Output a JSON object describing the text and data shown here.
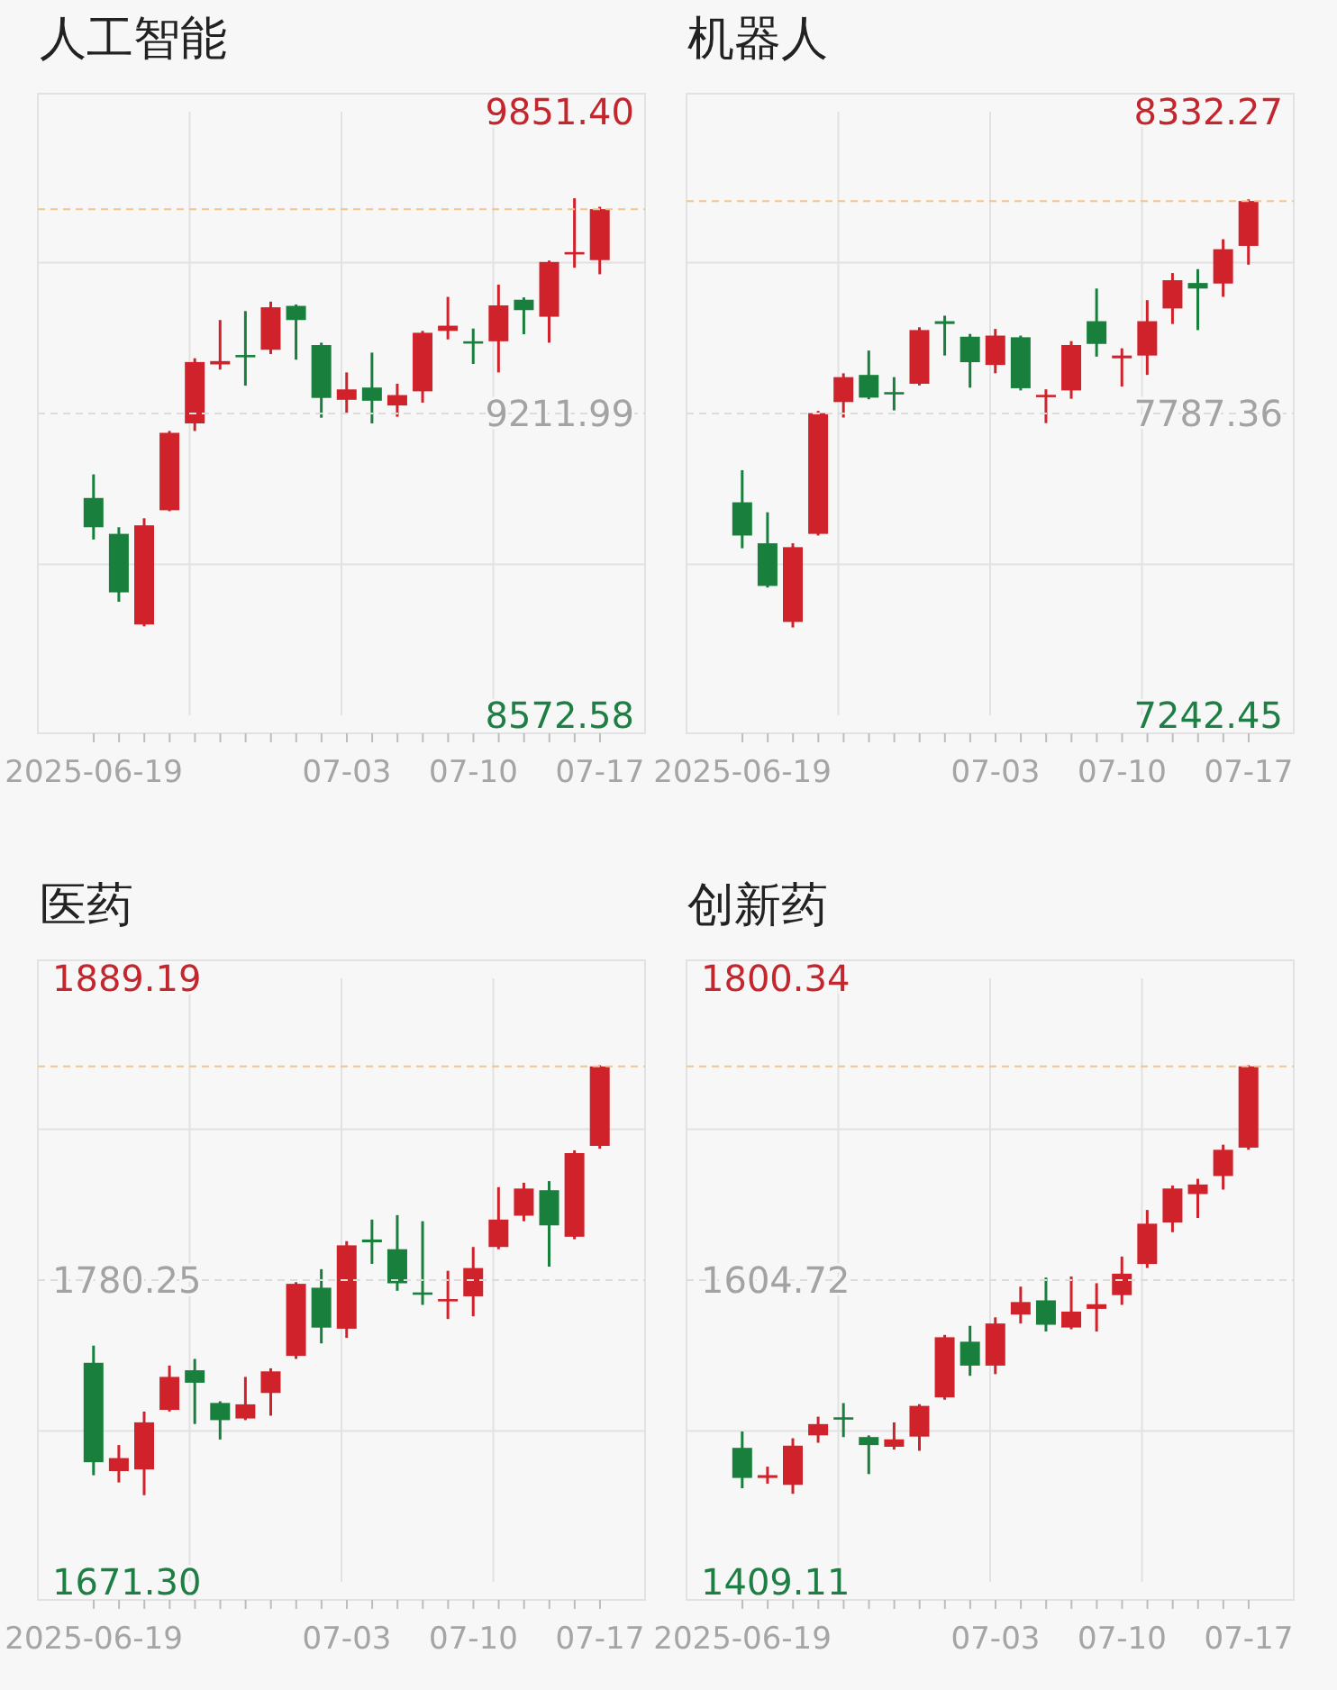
{
  "chart_data": [
    {
      "type": "candlestick",
      "title": "人工智能",
      "categories": [
        "2025-06-19",
        null,
        null,
        null,
        null,
        null,
        null,
        null,
        null,
        null,
        "07-03",
        null,
        null,
        null,
        null,
        "07-10",
        null,
        null,
        null,
        null,
        "07-17"
      ],
      "ohlc": [
        [
          9033,
          9083,
          8945,
          8971
        ],
        [
          8957,
          8971,
          8813,
          8833
        ],
        [
          8765,
          8990,
          8761,
          8975
        ],
        [
          9007,
          9175,
          9005,
          9171
        ],
        [
          9191,
          9329,
          9175,
          9321
        ],
        [
          9316,
          9410,
          9305,
          9323
        ],
        [
          9336,
          9429,
          9271,
          9332
        ],
        [
          9347,
          9449,
          9338,
          9437
        ],
        [
          9440,
          9443,
          9326,
          9410
        ],
        [
          9357,
          9362,
          9203,
          9245
        ],
        [
          9241,
          9299,
          9213,
          9263
        ],
        [
          9267,
          9341,
          9191,
          9239
        ],
        [
          9229,
          9275,
          9205,
          9251
        ],
        [
          9259,
          9387,
          9235,
          9383
        ],
        [
          9387,
          9459,
          9369,
          9398
        ],
        [
          9365,
          9392,
          9317,
          9362
        ],
        [
          9365,
          9485,
          9299,
          9441
        ],
        [
          9453,
          9458,
          9380,
          9431
        ],
        [
          9417,
          9536,
          9362,
          9533
        ],
        [
          9549,
          9668,
          9521,
          9554
        ],
        [
          9537,
          9650,
          9507,
          9645
        ]
      ],
      "colors": [
        "#18803c",
        "#18803c",
        "#d0222a",
        "#d0222a",
        "#d0222a",
        "#d0222a",
        "#18803c",
        "#d0222a",
        "#18803c",
        "#18803c",
        "#d0222a",
        "#18803c",
        "#d0222a",
        "#d0222a",
        "#d0222a",
        "#18803c",
        "#d0222a",
        "#18803c",
        "#d0222a",
        "#d0222a",
        "#d0222a"
      ],
      "ylim": [
        8572.58,
        9851.4
      ],
      "yticks": [
        8572.58,
        {
          "value": 8892.29,
          "label": null
        },
        9211.99,
        {
          "value": 9531.7,
          "label": null
        },
        {
          "value": 9851.4,
          "label": "9851.40"
        }
      ],
      "grid": true,
      "ref_lines": [
        {
          "axis": "y",
          "value": 9211.99,
          "color": "#dcdcdc",
          "line_style": "dashed"
        },
        {
          "axis": "y",
          "value": 9645,
          "color": "#f2c48e",
          "line_style": "dashed"
        }
      ]
    },
    {
      "type": "candlestick",
      "title": "机器人",
      "categories": [
        "2025-06-19",
        null,
        null,
        null,
        null,
        null,
        null,
        null,
        null,
        null,
        "07-03",
        null,
        null,
        null,
        null,
        "07-10",
        null,
        null,
        null,
        null,
        "07-17"
      ],
      "ohlc": [
        [
          7627,
          7685,
          7544,
          7567
        ],
        [
          7553,
          7609,
          7473,
          7476
        ],
        [
          7411,
          7553,
          7401,
          7546
        ],
        [
          7570,
          7792,
          7567,
          7788
        ],
        [
          7808,
          7860,
          7780,
          7853
        ],
        [
          7857,
          7901,
          7813,
          7816
        ],
        [
          7826,
          7853,
          7793,
          7823
        ],
        [
          7841,
          7943,
          7838,
          7938
        ],
        [
          7954,
          7964,
          7892,
          7949
        ],
        [
          7926,
          7931,
          7834,
          7880
        ],
        [
          7875,
          7940,
          7860,
          7928
        ],
        [
          7925,
          7928,
          7829,
          7833
        ],
        [
          7818,
          7831,
          7770,
          7821
        ],
        [
          7829,
          7918,
          7814,
          7911
        ],
        [
          7954,
          8013,
          7890,
          7913
        ],
        [
          7887,
          7905,
          7836,
          7892
        ],
        [
          7892,
          7992,
          7857,
          7954
        ],
        [
          7977,
          8041,
          7949,
          8028
        ],
        [
          8023,
          8048,
          7938,
          8013
        ],
        [
          8022,
          8102,
          7998,
          8084
        ],
        [
          8090,
          8174,
          8056,
          8171
        ]
      ],
      "colors": [
        "#18803c",
        "#18803c",
        "#d0222a",
        "#d0222a",
        "#d0222a",
        "#18803c",
        "#18803c",
        "#d0222a",
        "#18803c",
        "#18803c",
        "#d0222a",
        "#18803c",
        "#d0222a",
        "#d0222a",
        "#18803c",
        "#d0222a",
        "#d0222a",
        "#d0222a",
        "#18803c",
        "#d0222a",
        "#d0222a"
      ],
      "ylim": [
        7242.45,
        8332.27
      ],
      "yticks": [
        7242.45,
        {
          "value": 7514.91,
          "label": null
        },
        7787.36,
        {
          "value": 8059.82,
          "label": null
        },
        8332.27
      ],
      "grid": true,
      "ref_lines": [
        {
          "axis": "y",
          "value": 7787.36,
          "color": "#dcdcdc",
          "line_style": "dashed"
        },
        {
          "axis": "y",
          "value": 8171,
          "color": "#f2c48e",
          "line_style": "dashed"
        }
      ]
    },
    {
      "type": "candlestick",
      "title": "医药",
      "categories": [
        "2025-06-19",
        null,
        null,
        null,
        null,
        null,
        null,
        null,
        null,
        null,
        "07-03",
        null,
        null,
        null,
        null,
        "07-10",
        null,
        null,
        null,
        null,
        "07-17"
      ],
      "ohlc": [
        [
          1750.4,
          1756.6,
          1709.8,
          1714.5
        ],
        [
          1711.3,
          1720.7,
          1707.2,
          1716.0
        ],
        [
          1711.9,
          1732.8,
          1702.6,
          1728.9
        ],
        [
          1733.4,
          1749.4,
          1732.8,
          1745.3
        ],
        [
          1747.7,
          1751.8,
          1728.3,
          1743.2
        ],
        [
          1735.9,
          1736.5,
          1722.7,
          1729.7
        ],
        [
          1730.3,
          1745.3,
          1729.7,
          1735.4
        ],
        [
          1739.5,
          1748.4,
          1731.3,
          1747.3
        ],
        [
          1752.9,
          1779.5,
          1751.8,
          1778.9
        ],
        [
          1777.5,
          1784.2,
          1757.4,
          1763.1
        ],
        [
          1762.7,
          1794.3,
          1759.4,
          1792.8
        ],
        [
          1794.9,
          1802.1,
          1786.1,
          1793.9
        ],
        [
          1791.4,
          1803.7,
          1776.4,
          1779.1
        ],
        [
          1775.8,
          1801.5,
          1771.3,
          1775.0
        ],
        [
          1772.6,
          1783.6,
          1766.2,
          1773.4
        ],
        [
          1774.4,
          1792.2,
          1767.2,
          1784.6
        ],
        [
          1792.2,
          1813.8,
          1791.4,
          1802.1
        ],
        [
          1803.5,
          1815.4,
          1801.5,
          1813.3
        ],
        [
          1812.7,
          1816.0,
          1785.1,
          1800.0
        ],
        [
          1795.9,
          1827.1,
          1795.0,
          1826.1
        ],
        [
          1828.7,
          1857.8,
          1827.7,
          1857.4
        ]
      ],
      "colors": [
        "#18803c",
        "#d0222a",
        "#d0222a",
        "#d0222a",
        "#18803c",
        "#18803c",
        "#d0222a",
        "#d0222a",
        "#d0222a",
        "#18803c",
        "#d0222a",
        "#18803c",
        "#18803c",
        "#18803c",
        "#d0222a",
        "#d0222a",
        "#d0222a",
        "#d0222a",
        "#18803c",
        "#d0222a",
        "#d0222a"
      ],
      "ylim": [
        1671.3,
        1889.19
      ],
      "yticks": [
        {
          "value": 1671.3,
          "label": "1671.30"
        },
        {
          "value": 1725.78,
          "label": null
        },
        1780.25,
        {
          "value": 1834.72,
          "label": null
        },
        1889.19
      ],
      "grid": true,
      "ref_lines": [
        {
          "axis": "y",
          "value": 1780.25,
          "color": "#dcdcdc",
          "line_style": "dashed"
        },
        {
          "axis": "y",
          "value": 1857.4,
          "color": "#f2c48e",
          "line_style": "dashed"
        }
      ]
    },
    {
      "type": "candlestick",
      "title": "创新药",
      "categories": [
        "2025-06-19",
        null,
        null,
        null,
        null,
        null,
        null,
        null,
        null,
        null,
        "07-03",
        null,
        null,
        null,
        null,
        "07-10",
        null,
        null,
        null,
        null,
        "07-17"
      ],
      "ohlc": [
        [
          1496.0,
          1506.6,
          1469.8,
          1476.5
        ],
        [
          1476.5,
          1483.8,
          1472.8,
          1478.3
        ],
        [
          1472.0,
          1502.2,
          1466.2,
          1497.4
        ],
        [
          1504.1,
          1516.2,
          1499.3,
          1511.4
        ],
        [
          1515.8,
          1525.0,
          1503.0,
          1514.7
        ],
        [
          1503.0,
          1504.1,
          1479.0,
          1497.8
        ],
        [
          1496.7,
          1512.5,
          1494.9,
          1501.5
        ],
        [
          1503.3,
          1524.3,
          1494.1,
          1523.2
        ],
        [
          1528.7,
          1569.2,
          1527.2,
          1567.7
        ],
        [
          1564.8,
          1575.1,
          1542.7,
          1549.3
        ],
        [
          1549.3,
          1580.6,
          1543.8,
          1576.6
        ],
        [
          1582.4,
          1600.5,
          1576.6,
          1590.5
        ],
        [
          1591.6,
          1606.4,
          1571.4,
          1575.8
        ],
        [
          1574.0,
          1607.1,
          1572.9,
          1584.3
        ],
        [
          1586.1,
          1602.7,
          1571.4,
          1589.1
        ],
        [
          1595.0,
          1620.0,
          1588.7,
          1608.9
        ],
        [
          1615.2,
          1650.2,
          1612.6,
          1641.3
        ],
        [
          1642.1,
          1666.0,
          1635.8,
          1664.1
        ],
        [
          1660.5,
          1670.4,
          1645.0,
          1666.7
        ],
        [
          1672.2,
          1692.5,
          1663.4,
          1689.2
        ],
        [
          1690.6,
          1744.0,
          1689.2,
          1743.3
        ]
      ],
      "colors": [
        "#18803c",
        "#d0222a",
        "#d0222a",
        "#d0222a",
        "#18803c",
        "#18803c",
        "#d0222a",
        "#d0222a",
        "#d0222a",
        "#18803c",
        "#d0222a",
        "#d0222a",
        "#18803c",
        "#d0222a",
        "#d0222a",
        "#d0222a",
        "#d0222a",
        "#d0222a",
        "#d0222a",
        "#d0222a",
        "#d0222a"
      ],
      "ylim": [
        1409.11,
        1800.34
      ],
      "yticks": [
        1409.11,
        {
          "value": 1506.92,
          "label": null
        },
        1604.72,
        {
          "value": 1702.53,
          "label": null
        },
        1800.34
      ],
      "grid": true,
      "ref_lines": [
        {
          "axis": "y",
          "value": 1604.72,
          "color": "#dcdcdc",
          "line_style": "dashed"
        },
        {
          "axis": "y",
          "value": 1743.3,
          "color": "#f2c48e",
          "line_style": "dashed"
        }
      ]
    }
  ]
}
